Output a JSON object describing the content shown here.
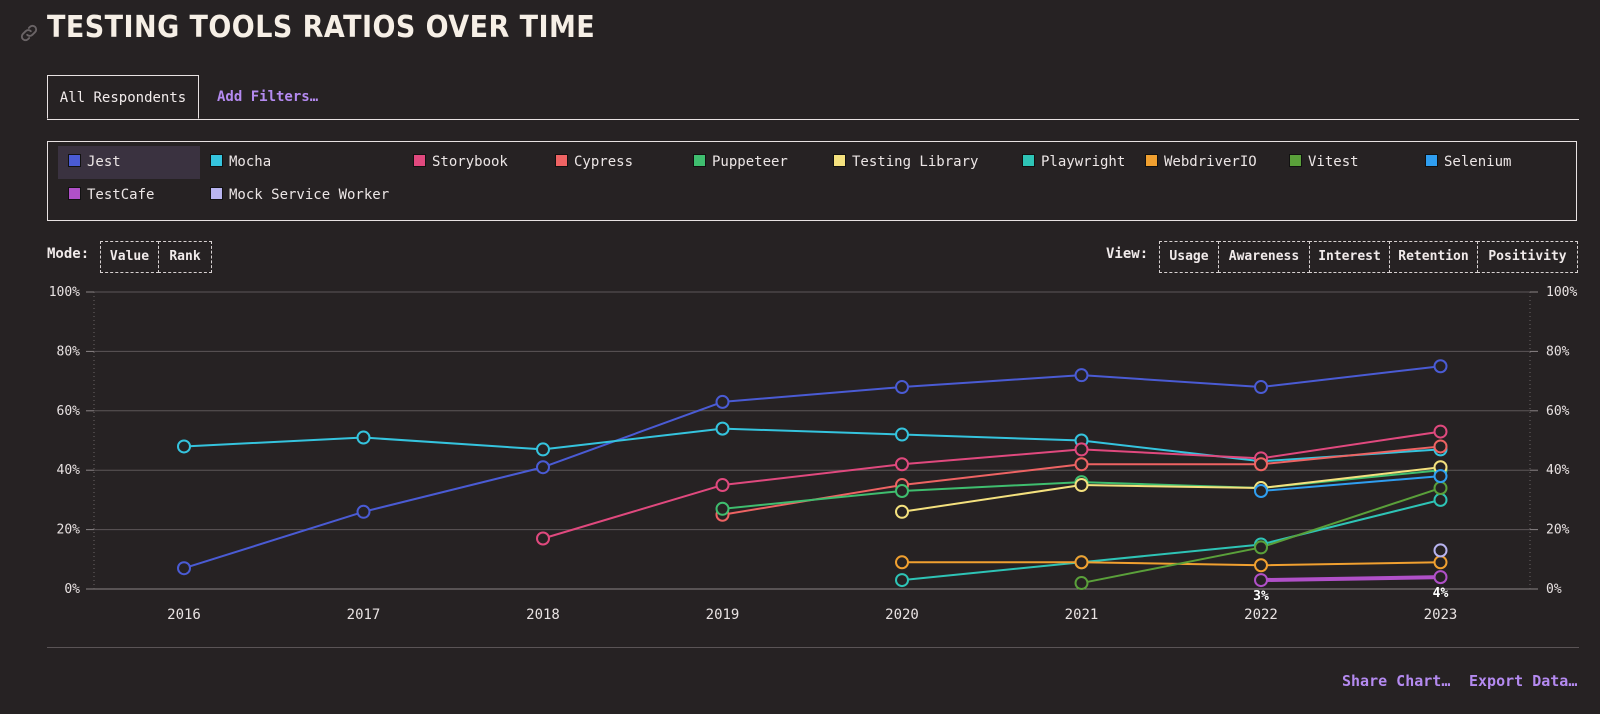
{
  "page": {
    "title": "TESTING TOOLS RATIOS OVER TIME",
    "link_icon": "link-icon"
  },
  "tabs": [
    {
      "label": "All Respondents"
    },
    {
      "label": "Add Filters…"
    }
  ],
  "legend": [
    {
      "name": "Jest",
      "color": "#4a5bd4"
    },
    {
      "name": "Mocha",
      "color": "#35c4de"
    },
    {
      "name": "Storybook",
      "color": "#e0497e"
    },
    {
      "name": "Cypress",
      "color": "#ee6363"
    },
    {
      "name": "Puppeteer",
      "color": "#3fbe6f"
    },
    {
      "name": "Testing Library",
      "color": "#f4e17e"
    },
    {
      "name": "Playwright",
      "color": "#2ec4b6"
    },
    {
      "name": "WebdriverIO",
      "color": "#f0a030"
    },
    {
      "name": "Vitest",
      "color": "#5aa03a"
    },
    {
      "name": "Selenium",
      "color": "#2f9ef0"
    },
    {
      "name": "TestCafe",
      "color": "#b050c8"
    },
    {
      "name": "Mock Service Worker",
      "color": "#b8b4f0"
    }
  ],
  "mode": {
    "label": "Mode:",
    "options": [
      "Value",
      "Rank"
    ]
  },
  "view": {
    "label": "View:",
    "options": [
      "Usage",
      "Awareness",
      "Interest",
      "Retention",
      "Positivity"
    ]
  },
  "footer": {
    "share": "Share Chart…",
    "export": "Export Data…"
  },
  "chart_data": {
    "type": "line",
    "x": [
      2016,
      2017,
      2018,
      2019,
      2020,
      2021,
      2022,
      2023
    ],
    "ylim": [
      0,
      100
    ],
    "y_ticks": [
      "0%",
      "20%",
      "40%",
      "60%",
      "80%",
      "100%"
    ],
    "grid": true,
    "point_labels": [
      {
        "series": "TestCafe",
        "x": 2022,
        "text": "3%"
      },
      {
        "series": "TestCafe",
        "x": 2023,
        "text": "4%"
      }
    ],
    "series": [
      {
        "name": "Jest",
        "color": "#4a5bd4",
        "values": [
          7,
          26,
          41,
          63,
          68,
          72,
          68,
          75
        ]
      },
      {
        "name": "Mocha",
        "color": "#35c4de",
        "values": [
          48,
          51,
          47,
          54,
          52,
          50,
          43,
          47
        ]
      },
      {
        "name": "Storybook",
        "color": "#e0497e",
        "values": [
          null,
          null,
          17,
          35,
          42,
          47,
          44,
          53
        ]
      },
      {
        "name": "Cypress",
        "color": "#ee6363",
        "values": [
          null,
          null,
          null,
          25,
          35,
          42,
          42,
          48
        ]
      },
      {
        "name": "Puppeteer",
        "color": "#3fbe6f",
        "values": [
          null,
          null,
          null,
          27,
          33,
          36,
          34,
          40
        ]
      },
      {
        "name": "Testing Library",
        "color": "#f4e17e",
        "values": [
          null,
          null,
          null,
          null,
          26,
          35,
          34,
          41
        ]
      },
      {
        "name": "Playwright",
        "color": "#2ec4b6",
        "values": [
          null,
          null,
          null,
          null,
          3,
          9,
          15,
          30
        ]
      },
      {
        "name": "WebdriverIO",
        "color": "#f0a030",
        "values": [
          null,
          null,
          null,
          null,
          9,
          9,
          8,
          9
        ]
      },
      {
        "name": "Vitest",
        "color": "#5aa03a",
        "values": [
          null,
          null,
          null,
          null,
          null,
          2,
          14,
          34
        ]
      },
      {
        "name": "Selenium",
        "color": "#2f9ef0",
        "values": [
          null,
          null,
          null,
          null,
          null,
          null,
          33,
          38
        ]
      },
      {
        "name": "TestCafe",
        "color": "#b050c8",
        "values": [
          null,
          null,
          null,
          null,
          null,
          null,
          3,
          4
        ]
      },
      {
        "name": "Mock Service Worker",
        "color": "#b8b4f0",
        "values": [
          null,
          null,
          null,
          null,
          null,
          null,
          null,
          13
        ]
      }
    ]
  }
}
